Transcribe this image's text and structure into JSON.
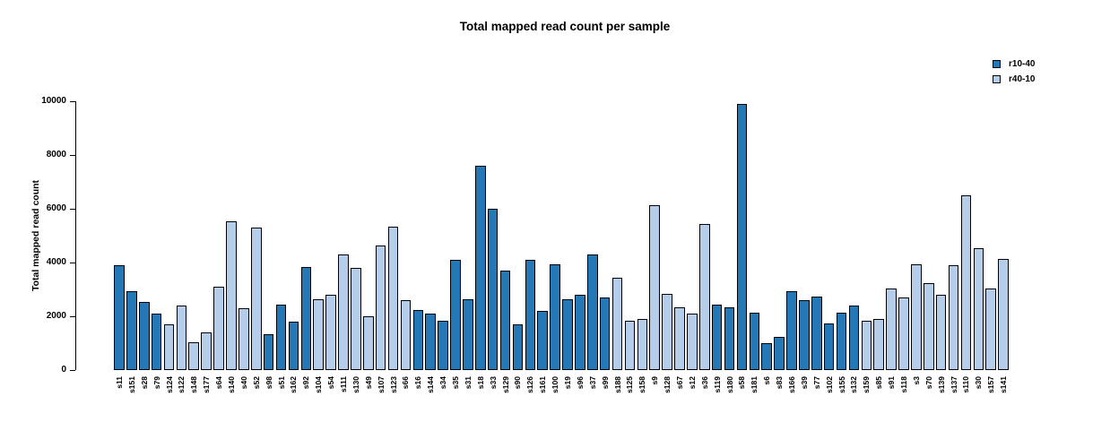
{
  "chart_data": {
    "type": "bar",
    "title": "Total mapped read count per sample",
    "xlabel": "",
    "ylabel": "Total mapped read count",
    "ylim": [
      0,
      10000
    ],
    "yticks": [
      0,
      2000,
      4000,
      6000,
      8000,
      10000
    ],
    "grid": false,
    "legend_position": "top-right",
    "legend": [
      {
        "label": "r10-40",
        "color": "#2478b5"
      },
      {
        "label": "r40-10",
        "color": "#b6cde9"
      }
    ],
    "samples": [
      {
        "name": "s11",
        "value": 3900,
        "group": "r10-40"
      },
      {
        "name": "s151",
        "value": 2950,
        "group": "r10-40"
      },
      {
        "name": "s28",
        "value": 2550,
        "group": "r10-40"
      },
      {
        "name": "s79",
        "value": 2100,
        "group": "r10-40"
      },
      {
        "name": "s124",
        "value": 1700,
        "group": "r40-10"
      },
      {
        "name": "s122",
        "value": 2400,
        "group": "r40-10"
      },
      {
        "name": "s148",
        "value": 1050,
        "group": "r40-10"
      },
      {
        "name": "s177",
        "value": 1400,
        "group": "r40-10"
      },
      {
        "name": "s64",
        "value": 3100,
        "group": "r40-10"
      },
      {
        "name": "s140",
        "value": 5550,
        "group": "r40-10"
      },
      {
        "name": "s40",
        "value": 2300,
        "group": "r40-10"
      },
      {
        "name": "s52",
        "value": 5300,
        "group": "r40-10"
      },
      {
        "name": "s98",
        "value": 1350,
        "group": "r10-40"
      },
      {
        "name": "s51",
        "value": 2450,
        "group": "r10-40"
      },
      {
        "name": "s162",
        "value": 1800,
        "group": "r10-40"
      },
      {
        "name": "s92",
        "value": 3850,
        "group": "r10-40"
      },
      {
        "name": "s104",
        "value": 2650,
        "group": "r40-10"
      },
      {
        "name": "s54",
        "value": 2800,
        "group": "r40-10"
      },
      {
        "name": "s111",
        "value": 4300,
        "group": "r40-10"
      },
      {
        "name": "s130",
        "value": 3800,
        "group": "r40-10"
      },
      {
        "name": "s49",
        "value": 2000,
        "group": "r40-10"
      },
      {
        "name": "s107",
        "value": 4650,
        "group": "r40-10"
      },
      {
        "name": "s123",
        "value": 5350,
        "group": "r40-10"
      },
      {
        "name": "s66",
        "value": 2600,
        "group": "r40-10"
      },
      {
        "name": "s16",
        "value": 2250,
        "group": "r10-40"
      },
      {
        "name": "s144",
        "value": 2100,
        "group": "r10-40"
      },
      {
        "name": "s34",
        "value": 1850,
        "group": "r10-40"
      },
      {
        "name": "s35",
        "value": 4100,
        "group": "r10-40"
      },
      {
        "name": "s31",
        "value": 2650,
        "group": "r10-40"
      },
      {
        "name": "s18",
        "value": 7600,
        "group": "r10-40"
      },
      {
        "name": "s33",
        "value": 6000,
        "group": "r10-40"
      },
      {
        "name": "s129",
        "value": 3700,
        "group": "r10-40"
      },
      {
        "name": "s90",
        "value": 1700,
        "group": "r10-40"
      },
      {
        "name": "s126",
        "value": 4100,
        "group": "r10-40"
      },
      {
        "name": "s161",
        "value": 2200,
        "group": "r10-40"
      },
      {
        "name": "s100",
        "value": 3950,
        "group": "r10-40"
      },
      {
        "name": "s19",
        "value": 2650,
        "group": "r10-40"
      },
      {
        "name": "s96",
        "value": 2800,
        "group": "r10-40"
      },
      {
        "name": "s37",
        "value": 4300,
        "group": "r10-40"
      },
      {
        "name": "s99",
        "value": 2700,
        "group": "r10-40"
      },
      {
        "name": "s188",
        "value": 3450,
        "group": "r40-10"
      },
      {
        "name": "s125",
        "value": 1850,
        "group": "r40-10"
      },
      {
        "name": "s158",
        "value": 1900,
        "group": "r40-10"
      },
      {
        "name": "s9",
        "value": 6150,
        "group": "r40-10"
      },
      {
        "name": "s128",
        "value": 2850,
        "group": "r40-10"
      },
      {
        "name": "s67",
        "value": 2350,
        "group": "r40-10"
      },
      {
        "name": "s12",
        "value": 2100,
        "group": "r40-10"
      },
      {
        "name": "s36",
        "value": 5450,
        "group": "r40-10"
      },
      {
        "name": "s119",
        "value": 2450,
        "group": "r10-40"
      },
      {
        "name": "s180",
        "value": 2350,
        "group": "r10-40"
      },
      {
        "name": "s58",
        "value": 9900,
        "group": "r10-40"
      },
      {
        "name": "s181",
        "value": 2150,
        "group": "r10-40"
      },
      {
        "name": "s6",
        "value": 1000,
        "group": "r10-40"
      },
      {
        "name": "s83",
        "value": 1250,
        "group": "r10-40"
      },
      {
        "name": "s166",
        "value": 2950,
        "group": "r10-40"
      },
      {
        "name": "s39",
        "value": 2600,
        "group": "r10-40"
      },
      {
        "name": "s77",
        "value": 2750,
        "group": "r10-40"
      },
      {
        "name": "s102",
        "value": 1750,
        "group": "r10-40"
      },
      {
        "name": "s155",
        "value": 2150,
        "group": "r10-40"
      },
      {
        "name": "s132",
        "value": 2400,
        "group": "r10-40"
      },
      {
        "name": "s159",
        "value": 1850,
        "group": "r40-10"
      },
      {
        "name": "s85",
        "value": 1900,
        "group": "r40-10"
      },
      {
        "name": "s91",
        "value": 3050,
        "group": "r40-10"
      },
      {
        "name": "s118",
        "value": 2700,
        "group": "r40-10"
      },
      {
        "name": "s3",
        "value": 3950,
        "group": "r40-10"
      },
      {
        "name": "s70",
        "value": 3250,
        "group": "r40-10"
      },
      {
        "name": "s139",
        "value": 2800,
        "group": "r40-10"
      },
      {
        "name": "s137",
        "value": 3900,
        "group": "r40-10"
      },
      {
        "name": "s110",
        "value": 6500,
        "group": "r40-10"
      },
      {
        "name": "s30",
        "value": 4550,
        "group": "r40-10"
      },
      {
        "name": "s157",
        "value": 3050,
        "group": "r40-10"
      },
      {
        "name": "s141",
        "value": 4150,
        "group": "r40-10"
      }
    ]
  }
}
